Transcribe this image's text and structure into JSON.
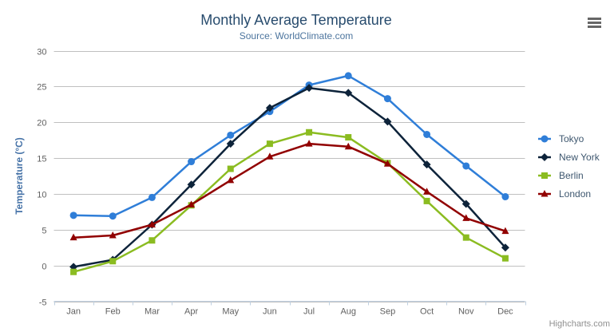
{
  "chart_data": {
    "type": "line",
    "title": "Monthly Average Temperature",
    "subtitle": "Source: WorldClimate.com",
    "xlabel": "",
    "ylabel": "Temperature (°C)",
    "ylim": [
      -5,
      30
    ],
    "y_tick_step": 5,
    "grid": "horizontal",
    "legend_position": "right",
    "categories": [
      "Jan",
      "Feb",
      "Mar",
      "Apr",
      "May",
      "Jun",
      "Jul",
      "Aug",
      "Sep",
      "Oct",
      "Nov",
      "Dec"
    ],
    "series": [
      {
        "name": "Tokyo",
        "color": "#2f7ed8",
        "marker": "circle",
        "values": [
          7.0,
          6.9,
          9.5,
          14.5,
          18.2,
          21.5,
          25.2,
          26.5,
          23.3,
          18.3,
          13.9,
          9.6
        ]
      },
      {
        "name": "New York",
        "color": "#0d233a",
        "marker": "diamond",
        "values": [
          -0.2,
          0.8,
          5.7,
          11.3,
          17.0,
          22.0,
          24.8,
          24.1,
          20.1,
          14.1,
          8.6,
          2.5
        ]
      },
      {
        "name": "Berlin",
        "color": "#8bbc21",
        "marker": "square",
        "values": [
          -0.9,
          0.6,
          3.5,
          8.4,
          13.5,
          17.0,
          18.6,
          17.9,
          14.3,
          9.0,
          3.9,
          1.0
        ]
      },
      {
        "name": "London",
        "color": "#910000",
        "marker": "triangle",
        "values": [
          3.9,
          4.2,
          5.7,
          8.5,
          11.9,
          15.2,
          17.0,
          16.6,
          14.2,
          10.3,
          6.6,
          4.8
        ]
      }
    ]
  },
  "credits": "Highcharts.com",
  "icons": {
    "export_menu": "hamburger"
  },
  "colors": {
    "title": "#274b6d",
    "subtitle": "#4d759e",
    "axis_title": "#4572a7",
    "tick_label": "#606060",
    "grid": "#c0c0c0",
    "axis_line": "#c0d0e0",
    "legend_text": "#3e576f",
    "credits": "#909090",
    "menu_icon": "#666666"
  }
}
